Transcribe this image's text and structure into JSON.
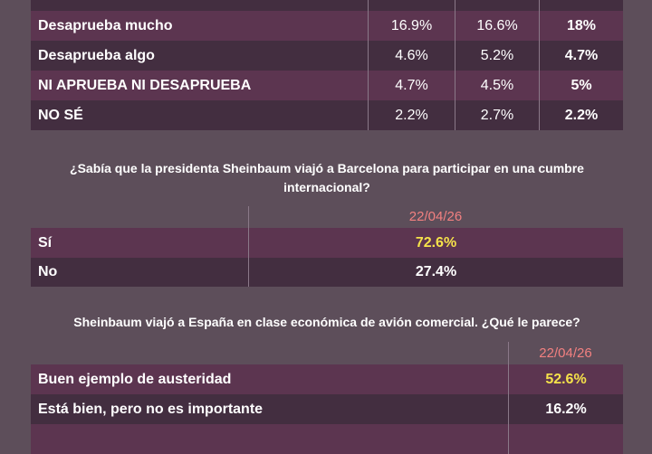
{
  "table1": {
    "rows": [
      {
        "label": "Desaprueba mucho",
        "v1": "16.9%",
        "v2": "16.6%",
        "v3": "18%"
      },
      {
        "label": "Desaprueba algo",
        "v1": "4.6%",
        "v2": "5.2%",
        "v3": "4.7%"
      },
      {
        "label": "NI APRUEBA NI DESAPRUEBA",
        "v1": "4.7%",
        "v2": "4.5%",
        "v3": "5%"
      },
      {
        "label": "NO SÉ",
        "v1": "2.2%",
        "v2": "2.7%",
        "v3": "2.2%"
      }
    ]
  },
  "q2": {
    "question": "¿Sabía que la presidenta Sheinbaum viajó a Barcelona para participar en una cumbre internacional?",
    "date": "22/04/26",
    "rows": [
      {
        "label": "Sí",
        "value": "72.6%"
      },
      {
        "label": "No",
        "value": "27.4%"
      }
    ]
  },
  "q3": {
    "question": "Sheinbaum viajó a España en clase económica de avión comercial. ¿Qué le parece?",
    "date": "22/04/26",
    "rows": [
      {
        "label": "Buen ejemplo de austeridad",
        "value": "52.6%"
      },
      {
        "label": "Está bien, pero no es importante",
        "value": "16.2%"
      }
    ]
  },
  "colors": {
    "background": "#5d4e5a",
    "row_light": "#5c3550",
    "row_dark": "#432e40",
    "date": "#f28080",
    "highlight": "#f5e24a"
  }
}
